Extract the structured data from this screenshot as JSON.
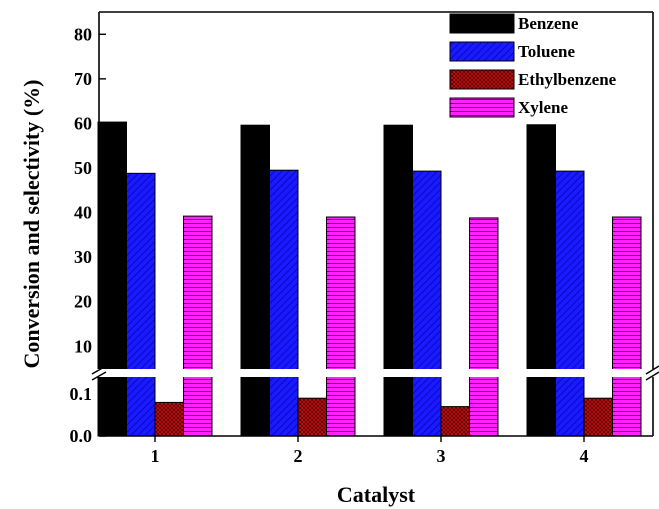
{
  "chart_data": {
    "type": "bar",
    "xlabel": "Catalyst",
    "ylabel": "Conversion and selectivity (%)",
    "categories": [
      "1",
      "2",
      "3",
      "4"
    ],
    "y_axis_break": true,
    "lower_ylim": [
      0,
      0.15
    ],
    "upper_ylim": [
      4,
      85
    ],
    "lower_ticks": [
      "0.0",
      "0.1"
    ],
    "upper_ticks": [
      "10",
      "20",
      "30",
      "40",
      "50",
      "60",
      "70",
      "80"
    ],
    "legend_position": "top-right",
    "series": [
      {
        "name": "Benzene",
        "color": "#000000",
        "pattern": "solid",
        "values": [
          60.3,
          59.6,
          59.6,
          59.7
        ]
      },
      {
        "name": "Toluene",
        "color": "#1a1aff",
        "pattern": "diagonal",
        "values": [
          48.8,
          49.5,
          49.3,
          49.3
        ]
      },
      {
        "name": "Ethylbenzene",
        "color": "#cc1111",
        "pattern": "crosshatch",
        "values": [
          0.08,
          0.09,
          0.07,
          0.09
        ]
      },
      {
        "name": "Xylene",
        "color": "#ff22ff",
        "pattern": "horizontal",
        "values": [
          39.2,
          39.0,
          38.8,
          39.0
        ]
      }
    ]
  }
}
